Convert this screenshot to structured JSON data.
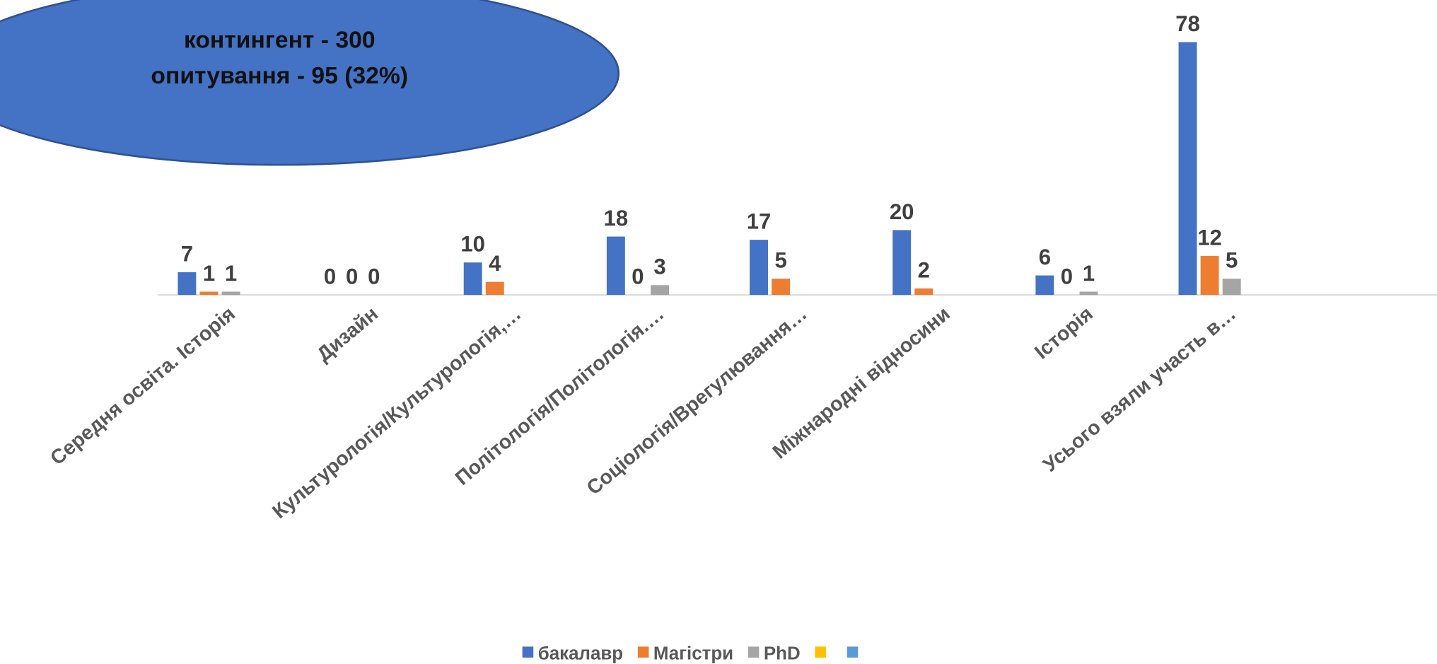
{
  "chart_data": {
    "type": "bar",
    "annotations": [
      "контингент - 300",
      "опитування - 95 (32%)"
    ],
    "categories": [
      "Середня освіта. Історія",
      "Дизайн",
      "Культурологія/Культурологія,…",
      "Політологія/Політологія.…",
      "Соціологія/Врегулювання…",
      "Міжнародні відносини",
      "Історія",
      "Усього взяли участь в…"
    ],
    "series": [
      {
        "name": "бакалавр",
        "color": "#4472c4",
        "values": [
          7,
          0,
          10,
          18,
          17,
          20,
          6,
          78
        ]
      },
      {
        "name": "Магістри",
        "color": "#ed7d31",
        "values": [
          1,
          0,
          4,
          0,
          5,
          2,
          0,
          12
        ]
      },
      {
        "name": "PhD",
        "color": "#a5a5a5",
        "values": [
          1,
          0,
          null,
          3,
          null,
          null,
          1,
          5
        ]
      },
      {
        "color": "#ffc000",
        "values": [
          null,
          null,
          null,
          null,
          null,
          null,
          null,
          null
        ]
      },
      {
        "color": "#5b9bd5",
        "values": [
          null,
          null,
          null,
          null,
          null,
          null,
          null,
          null
        ]
      }
    ],
    "ylim": [
      0,
      78
    ],
    "grid": false
  }
}
